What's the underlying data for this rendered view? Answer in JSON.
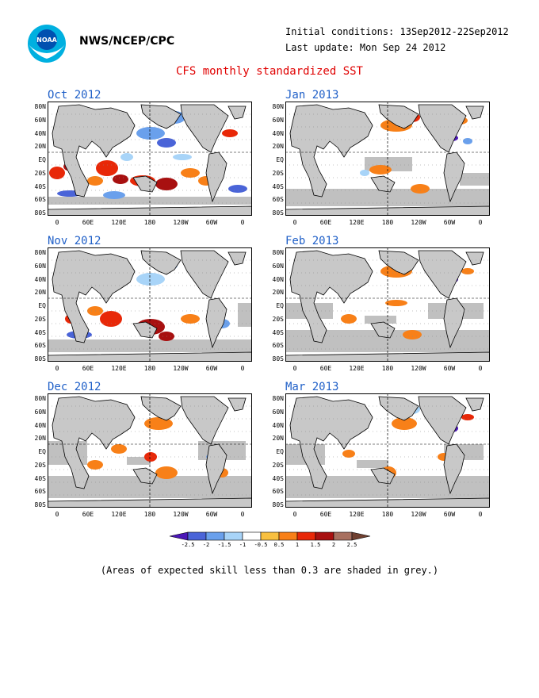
{
  "header": {
    "org": "NWS/NCEP/CPC",
    "initial_conditions": "Initial conditions: 13Sep2012-22Sep2012",
    "last_update": "Last update: Mon Sep 24 2012",
    "title": "CFS monthly standardized SST"
  },
  "panels": [
    {
      "label": "Oct 2012"
    },
    {
      "label": "Jan 2013"
    },
    {
      "label": "Nov 2012"
    },
    {
      "label": "Feb 2013"
    },
    {
      "label": "Dec 2012"
    },
    {
      "label": "Mar 2013"
    }
  ],
  "lat_labels": [
    "80N",
    "60N",
    "40N",
    "20N",
    "EQ",
    "20S",
    "40S",
    "60S",
    "80S"
  ],
  "lon_labels": [
    "0",
    "60E",
    "120E",
    "180",
    "120W",
    "60W",
    "0"
  ],
  "colorbar": {
    "labels": [
      "-2.5",
      "-2",
      "-1.5",
      "-1",
      "-0.5",
      "0.5",
      "1",
      "1.5",
      "2",
      "2.5"
    ],
    "colors": [
      "#4b16b8",
      "#4a64d8",
      "#6aa0ec",
      "#a8d4f8",
      "#ffffff",
      "#f8c040",
      "#f88018",
      "#e82808",
      "#a81010",
      "#a87060",
      "#704030"
    ]
  },
  "colors": {
    "land": "#c8c8c8",
    "skill_mask": "#c0c0c0",
    "title": "#e00000",
    "panel_title": "#2060c8"
  },
  "footer": "(Areas of expected skill less than 0.3 are shaded in grey.)"
}
